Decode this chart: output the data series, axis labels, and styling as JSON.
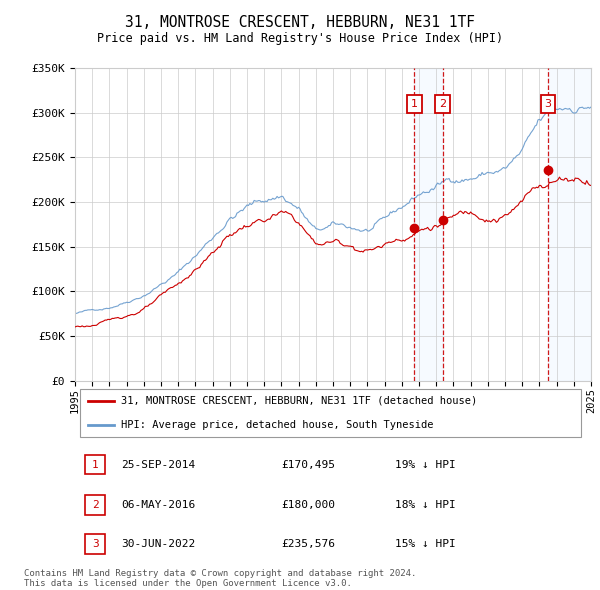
{
  "title": "31, MONTROSE CRESCENT, HEBBURN, NE31 1TF",
  "subtitle": "Price paid vs. HM Land Registry's House Price Index (HPI)",
  "ylim": [
    0,
    350000
  ],
  "yticks": [
    0,
    50000,
    100000,
    150000,
    200000,
    250000,
    300000,
    350000
  ],
  "ytick_labels": [
    "£0",
    "£50K",
    "£100K",
    "£150K",
    "£200K",
    "£250K",
    "£300K",
    "£350K"
  ],
  "bg_color": "#ffffff",
  "grid_color": "#cccccc",
  "hpi_color": "#6699cc",
  "price_color": "#cc0000",
  "sale_line_color": "#cc0000",
  "shade_color": "#ddeeff",
  "annotation_bg": "#ffffff",
  "annotation_border": "#cc0000",
  "legend_label_red": "31, MONTROSE CRESCENT, HEBBURN, NE31 1TF (detached house)",
  "legend_label_blue": "HPI: Average price, detached house, South Tyneside",
  "transactions": [
    {
      "num": 1,
      "date": "25-SEP-2014",
      "price": "£170,495",
      "hpi": "19% ↓ HPI",
      "year": 2014.73
    },
    {
      "num": 2,
      "date": "06-MAY-2016",
      "price": "£180,000",
      "hpi": "18% ↓ HPI",
      "year": 2016.38
    },
    {
      "num": 3,
      "date": "30-JUN-2022",
      "price": "£235,576",
      "hpi": "15% ↓ HPI",
      "year": 2022.5
    }
  ],
  "footer": "Contains HM Land Registry data © Crown copyright and database right 2024.\nThis data is licensed under the Open Government Licence v3.0.",
  "sale_prices": [
    170495,
    180000,
    235576
  ]
}
